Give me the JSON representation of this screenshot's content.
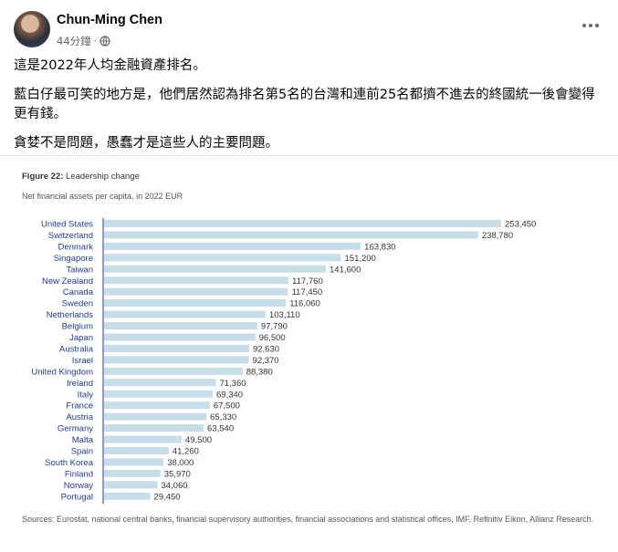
{
  "post": {
    "author": "Chun-Ming Chen",
    "time": "44分鐘",
    "dot": "·",
    "paragraphs": [
      "這是2022年人均金融資產排名。",
      "藍白仔最可笑的地方是，他們居然認為排名第5名的台灣和連前25名都擠不進去的終國統一後會變得更有錢。",
      "貪婪不是問題，愚蠢才是這些人的主要問題。"
    ]
  },
  "chart_data": {
    "type": "bar",
    "orientation": "horizontal",
    "title_bold": "Figure 22:",
    "title_rest": "Leadership change",
    "subtitle": "Net financial assets per capita, in 2022 EUR",
    "categories": [
      "United States",
      "Switzerland",
      "Denmark",
      "Singapore",
      "Taiwan",
      "New Zealand",
      "Canada",
      "Sweden",
      "Netherlands",
      "Belgium",
      "Japan",
      "Australia",
      "Israel",
      "United Kingdom",
      "Ireland",
      "Italy",
      "France",
      "Austria",
      "Germany",
      "Malta",
      "Spain",
      "South Korea",
      "Finland",
      "Norway",
      "Portugal"
    ],
    "values": [
      253450,
      238780,
      163830,
      151200,
      141600,
      117760,
      117450,
      116060,
      103110,
      97790,
      96500,
      92630,
      92370,
      88380,
      71360,
      69340,
      67500,
      65330,
      63540,
      49500,
      41260,
      38000,
      35970,
      34060,
      29450
    ],
    "value_labels": [
      "253,450",
      "238,780",
      "163,830",
      "151,200",
      "141,600",
      "117,760",
      "117,450",
      "116,060",
      "103,110",
      "97,790",
      "96,500",
      "92,630",
      "92,370",
      "88,380",
      "71,360",
      "69,340",
      "67,500",
      "65,330",
      "63,540",
      "49,500",
      "41,260",
      "38,000",
      "35,970",
      "34,060",
      "29,450"
    ],
    "bar_color": "#c7dde8",
    "label_color": "#1f3b8c",
    "source": "Sources: Eurostat, national central banks, financial supervisory authorities, financial associations and statistical offices, IMF, Refinitiv Eikon, Allianz Research."
  }
}
